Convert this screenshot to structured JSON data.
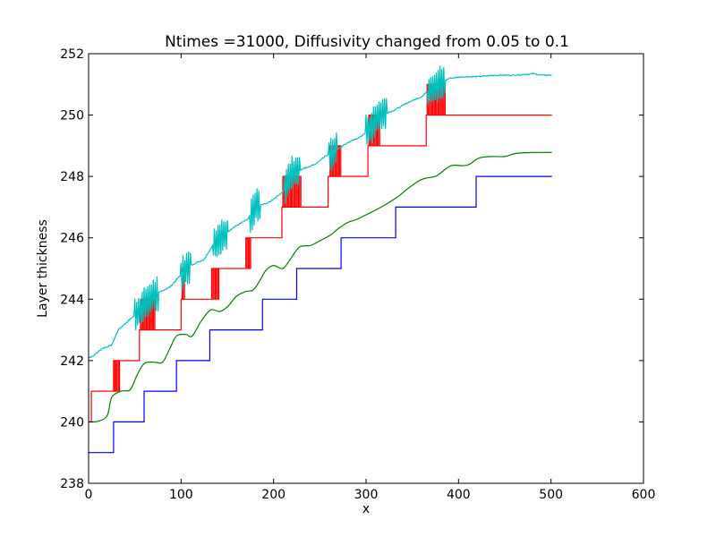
{
  "chart_data": {
    "type": "line",
    "title": "Ntimes =31000, Diffusivity changed from 0.05 to 0.1",
    "xlabel": "x",
    "ylabel": "Layer thickness",
    "xlim": [
      0,
      600
    ],
    "ylim": [
      238,
      252
    ],
    "xticks": [
      0,
      100,
      200,
      300,
      400,
      500,
      600
    ],
    "yticks": [
      238,
      240,
      242,
      244,
      246,
      248,
      250,
      252
    ],
    "grid": false,
    "legend": "none",
    "series": [
      {
        "color": "#0000ff",
        "style": "steps",
        "points": [
          [
            0,
            239
          ],
          [
            27,
            239
          ],
          [
            27,
            240
          ],
          [
            60,
            240
          ],
          [
            60,
            241
          ],
          [
            95,
            241
          ],
          [
            95,
            242
          ],
          [
            131,
            242
          ],
          [
            131,
            243
          ],
          [
            188,
            243
          ],
          [
            188,
            244
          ],
          [
            225,
            244
          ],
          [
            225,
            245
          ],
          [
            273,
            245
          ],
          [
            273,
            246
          ],
          [
            332,
            246
          ],
          [
            332,
            247
          ],
          [
            419,
            247
          ],
          [
            419,
            248
          ],
          [
            501,
            248
          ]
        ]
      },
      {
        "color": "#008000",
        "style": "smooth",
        "points": [
          [
            0,
            240.0
          ],
          [
            10,
            240.02
          ],
          [
            20,
            240.2
          ],
          [
            25,
            240.8
          ],
          [
            35,
            241.0
          ],
          [
            45,
            241.05
          ],
          [
            52,
            241.5
          ],
          [
            60,
            241.9
          ],
          [
            70,
            241.95
          ],
          [
            80,
            241.95
          ],
          [
            88,
            242.4
          ],
          [
            95,
            242.8
          ],
          [
            105,
            242.85
          ],
          [
            112,
            242.8
          ],
          [
            122,
            243.3
          ],
          [
            132,
            243.65
          ],
          [
            142,
            243.6
          ],
          [
            150,
            243.75
          ],
          [
            160,
            244.1
          ],
          [
            170,
            244.25
          ],
          [
            178,
            244.3
          ],
          [
            185,
            244.6
          ],
          [
            192,
            244.95
          ],
          [
            200,
            245.1
          ],
          [
            210,
            245.0
          ],
          [
            218,
            245.3
          ],
          [
            228,
            245.7
          ],
          [
            240,
            245.75
          ],
          [
            250,
            245.9
          ],
          [
            262,
            246.1
          ],
          [
            270,
            246.3
          ],
          [
            280,
            246.5
          ],
          [
            290,
            246.6
          ],
          [
            300,
            246.75
          ],
          [
            310,
            246.9
          ],
          [
            322,
            247.1
          ],
          [
            335,
            247.35
          ],
          [
            345,
            247.6
          ],
          [
            360,
            247.9
          ],
          [
            375,
            248.0
          ],
          [
            380,
            248.1
          ],
          [
            392,
            248.35
          ],
          [
            405,
            248.35
          ],
          [
            412,
            248.4
          ],
          [
            422,
            248.6
          ],
          [
            435,
            248.65
          ],
          [
            450,
            248.65
          ],
          [
            462,
            248.75
          ],
          [
            480,
            248.78
          ],
          [
            501,
            248.78
          ]
        ]
      },
      {
        "color": "#ff0000",
        "style": "noisy-steps",
        "points": [
          [
            0,
            240
          ],
          [
            3,
            240
          ],
          [
            3,
            241
          ],
          [
            28,
            241
          ],
          [
            28,
            242
          ],
          [
            55,
            242
          ],
          [
            55,
            243
          ],
          [
            100,
            243
          ],
          [
            100,
            244
          ],
          [
            133,
            244
          ],
          [
            133,
            245
          ],
          [
            170,
            245
          ],
          [
            170,
            246
          ],
          [
            209,
            246
          ],
          [
            209,
            247
          ],
          [
            259,
            247
          ],
          [
            259,
            248
          ],
          [
            302,
            248
          ],
          [
            302,
            249
          ],
          [
            365,
            249
          ],
          [
            365,
            250
          ],
          [
            501,
            250
          ]
        ],
        "oscillation_ranges": [
          [
            27,
            34
          ],
          [
            56,
            72
          ],
          [
            101,
            104
          ],
          [
            133,
            142
          ],
          [
            170,
            176
          ],
          [
            210,
            230
          ],
          [
            261,
            274
          ],
          [
            303,
            315
          ],
          [
            366,
            386
          ]
        ]
      },
      {
        "color": "#00bfbf",
        "style": "noisy-smooth",
        "points": [
          [
            0,
            242.1
          ],
          [
            5,
            242.15
          ],
          [
            15,
            242.4
          ],
          [
            25,
            242.5
          ],
          [
            32,
            243.0
          ],
          [
            45,
            243.35
          ],
          [
            55,
            243.6
          ],
          [
            65,
            244.0
          ],
          [
            75,
            244.2
          ],
          [
            88,
            244.4
          ],
          [
            100,
            244.8
          ],
          [
            110,
            245.1
          ],
          [
            125,
            245.3
          ],
          [
            135,
            245.8
          ],
          [
            145,
            246.1
          ],
          [
            160,
            246.4
          ],
          [
            172,
            246.6
          ],
          [
            180,
            247.0
          ],
          [
            195,
            247.15
          ],
          [
            210,
            247.5
          ],
          [
            220,
            248.1
          ],
          [
            232,
            248.25
          ],
          [
            245,
            248.4
          ],
          [
            258,
            248.7
          ],
          [
            268,
            248.85
          ],
          [
            280,
            249.1
          ],
          [
            295,
            249.3
          ],
          [
            305,
            249.6
          ],
          [
            315,
            250.0
          ],
          [
            330,
            250.15
          ],
          [
            345,
            250.4
          ],
          [
            360,
            250.6
          ],
          [
            370,
            250.85
          ],
          [
            378,
            251.0
          ],
          [
            390,
            251.2
          ],
          [
            405,
            251.25
          ],
          [
            420,
            251.25
          ],
          [
            440,
            251.3
          ],
          [
            460,
            251.3
          ],
          [
            480,
            251.35
          ],
          [
            490,
            251.3
          ],
          [
            501,
            251.3
          ]
        ],
        "noise_ranges": [
          [
            50,
            75
          ],
          [
            100,
            110
          ],
          [
            135,
            150
          ],
          [
            175,
            185
          ],
          [
            212,
            228
          ],
          [
            260,
            268
          ],
          [
            300,
            322
          ],
          [
            367,
            385
          ]
        ]
      }
    ]
  }
}
